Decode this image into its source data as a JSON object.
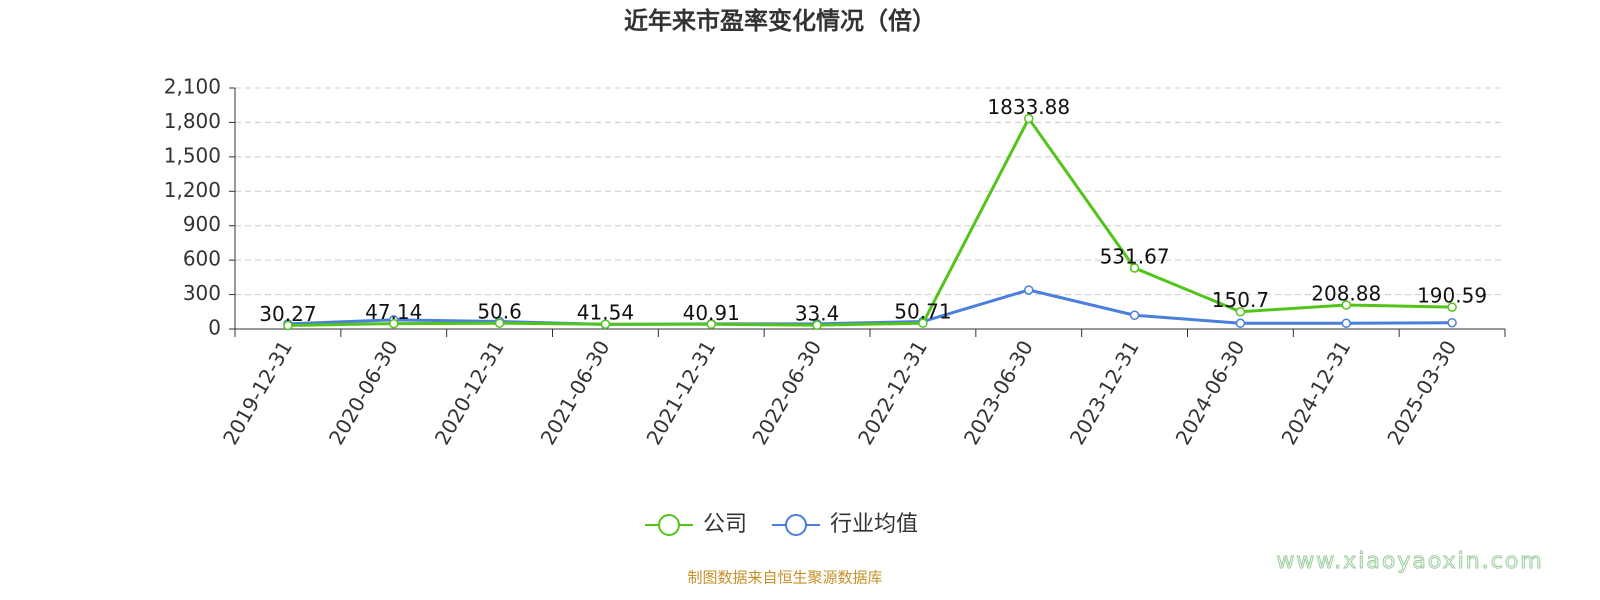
{
  "chart_data": {
    "type": "line",
    "title": "近年来市盈率变化情况（倍）",
    "categories": [
      "2019-12-31",
      "2020-06-30",
      "2020-12-31",
      "2021-06-30",
      "2021-12-31",
      "2022-06-30",
      "2022-12-31",
      "2023-06-30",
      "2023-12-31",
      "2024-06-30",
      "2024-12-31",
      "2025-03-30"
    ],
    "series": [
      {
        "name": "公司",
        "color": "#52c41a",
        "values": [
          30.27,
          47.14,
          50.6,
          41.54,
          40.91,
          33.4,
          50.71,
          1833.88,
          531.67,
          150.7,
          208.88,
          190.59
        ]
      },
      {
        "name": "行业均值",
        "color": "#4a7fdc",
        "values": [
          45,
          80,
          65,
          40,
          45,
          45,
          65,
          340,
          120,
          50,
          50,
          55
        ]
      }
    ],
    "ylim": [
      0,
      2100
    ],
    "yticks": [
      0,
      300,
      600,
      900,
      {
        "value": 1200,
        "label": "1,200"
      },
      {
        "value": 1500,
        "label": "1,500"
      },
      {
        "value": 1800,
        "label": "1,800"
      },
      {
        "value": 2100,
        "label": "2,100"
      }
    ],
    "grid": true,
    "legend": "bottom",
    "source": "制图数据来自恒生聚源数据库",
    "watermark": "www.xiaoyaoxin.com"
  }
}
